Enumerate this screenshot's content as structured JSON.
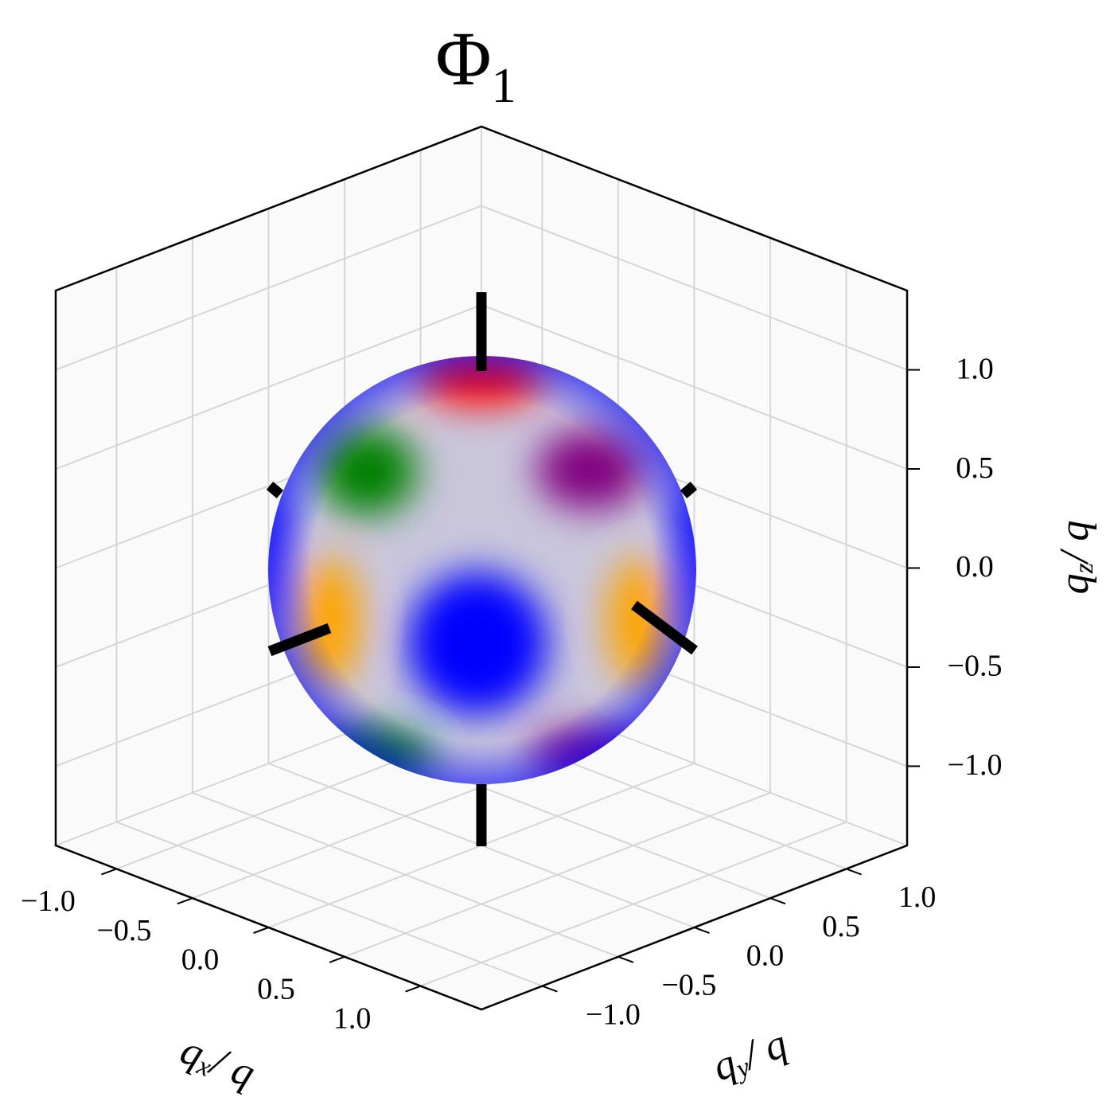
{
  "chart_data": {
    "type": "surface3d",
    "title": [
      "Φ",
      "1"
    ],
    "xlabel": [
      "q",
      "x",
      "/ q"
    ],
    "ylabel": [
      "q",
      "y",
      "/ q"
    ],
    "zlabel": [
      "q",
      "z",
      "/ q"
    ],
    "xlim": [
      -1.4,
      1.4
    ],
    "ylim": [
      -1.4,
      1.4
    ],
    "zlim": [
      -1.4,
      1.4
    ],
    "xticks": [
      {
        "value": -1,
        "label": "−1.0"
      },
      {
        "value": -0.5,
        "label": "−0.5"
      },
      {
        "value": 0,
        "label": "0.0"
      },
      0.5,
      {
        "value": 1,
        "label": "1.0"
      }
    ],
    "yticks": [
      {
        "value": -1,
        "label": "−1.0"
      },
      {
        "value": -0.5,
        "label": "−0.5"
      },
      {
        "value": 0,
        "label": "0.0"
      },
      0.5,
      {
        "value": 1,
        "label": "1.0"
      }
    ],
    "zticks": [
      {
        "value": -1,
        "label": "−1.0"
      },
      {
        "value": -0.5,
        "label": "−0.5"
      },
      {
        "value": 0,
        "label": "0.0"
      },
      0.5,
      {
        "value": 1,
        "label": "1.0"
      }
    ],
    "grid": true
  }
}
